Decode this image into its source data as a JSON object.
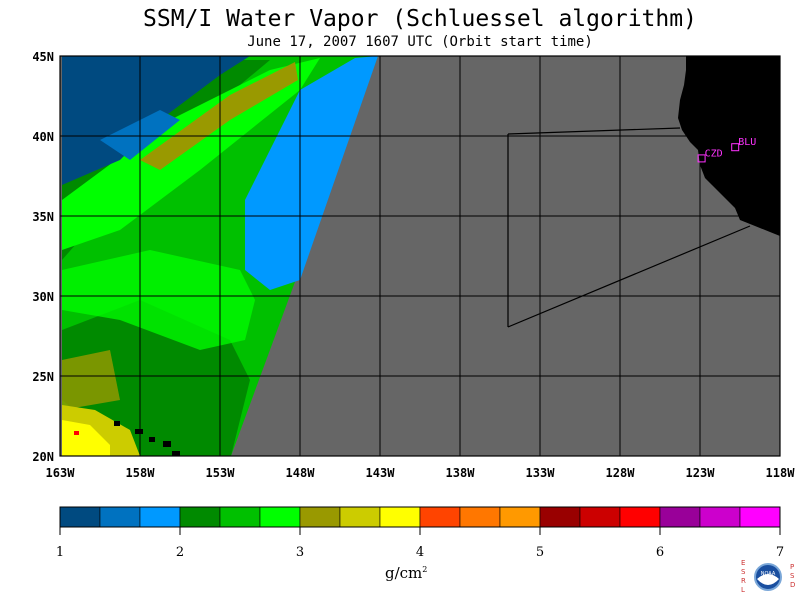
{
  "title": "SSM/I Water Vapor (Schluessel algorithm)",
  "subtitle": "June 17, 2007  1607 UTC  (Orbit start time)",
  "units": "g/cm",
  "units_exponent": "2",
  "map": {
    "lon_range": [
      -163,
      -118
    ],
    "lat_range": [
      20,
      45
    ],
    "lon_ticks": [
      "163W",
      "158W",
      "153W",
      "148W",
      "143W",
      "138W",
      "133W",
      "128W",
      "123W",
      "118W"
    ],
    "lat_ticks": [
      "45N",
      "40N",
      "35N",
      "30N",
      "25N",
      "20N"
    ],
    "no_data_color": "#666666",
    "land_color": "#000000",
    "stations": [
      {
        "label": "CZD",
        "lon": -122.9,
        "lat": 38.6
      },
      {
        "label": "BLU",
        "lon": -120.8,
        "lat": 39.3
      }
    ],
    "station_color": "#ff33ff"
  },
  "colorbar": {
    "tick_labels": [
      "1",
      "2",
      "3",
      "4",
      "5",
      "6",
      "7"
    ],
    "colors": [
      "#004a80",
      "#0072c0",
      "#0099ff",
      "#008a00",
      "#00c000",
      "#00ff00",
      "#999900",
      "#cccc00",
      "#ffff00",
      "#ff4400",
      "#ff7700",
      "#ff9900",
      "#990000",
      "#cc0000",
      "#ff0000",
      "#990099",
      "#cc00cc",
      "#ff00ff"
    ]
  },
  "logo": {
    "left_letters": "ESRL",
    "right_letters": "PSD",
    "center_text": "NOAA"
  }
}
